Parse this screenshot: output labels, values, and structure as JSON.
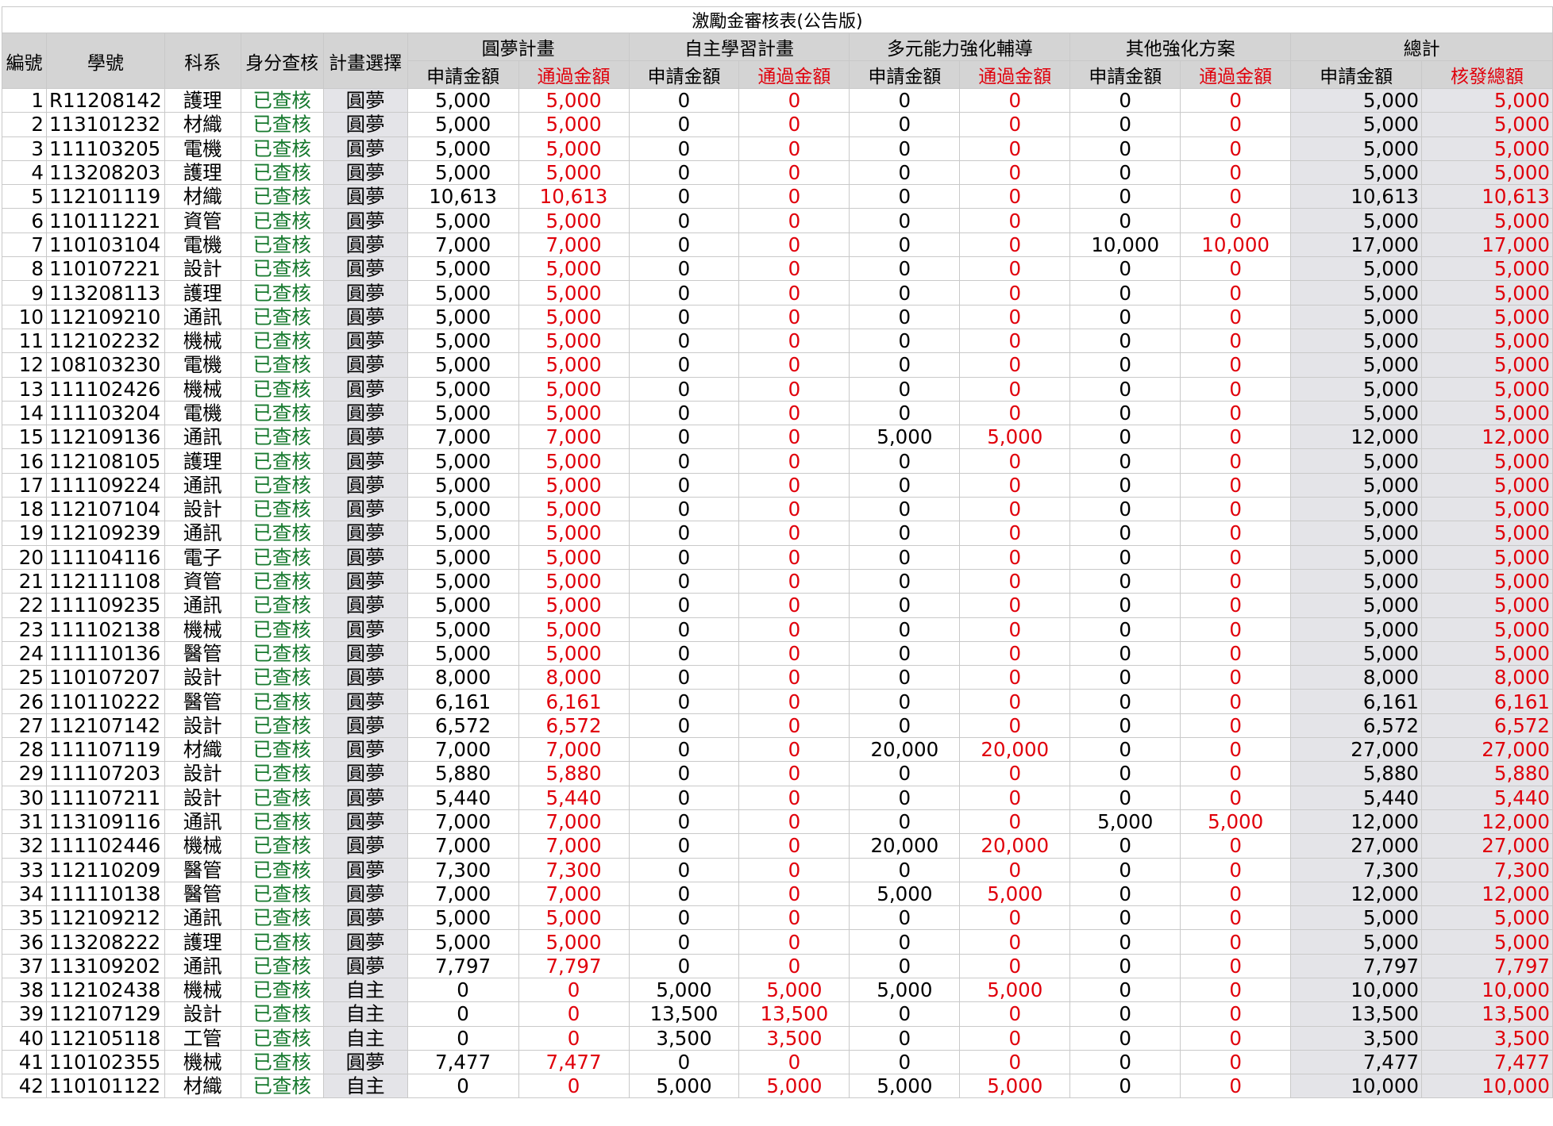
{
  "title": "激勵金審核表(公告版)",
  "headers": {
    "index": "編號",
    "student_id": "學號",
    "department": "科系",
    "identity_check": "身分查核",
    "plan_choice": "計畫選擇",
    "groups": [
      "圓夢計畫",
      "自主學習計畫",
      "多元能力強化輔導",
      "其他強化方案",
      "總計"
    ],
    "applied": "申請金額",
    "approved": "通過金額",
    "total_issued": "核發總額"
  },
  "colors": {
    "header_bg": "#d4d4d4",
    "approved_text": "#e0000b",
    "checked_text": "#17792e",
    "shaded_col": "#e4e4e8",
    "grid": "#c9c9c9"
  },
  "rows": [
    [
      "1",
      "R11208142",
      "護理",
      "已查核",
      "圓夢",
      "5,000",
      "5,000",
      "0",
      "0",
      "0",
      "0",
      "0",
      "0",
      "5,000",
      "5,000"
    ],
    [
      "2",
      "113101232",
      "材織",
      "已查核",
      "圓夢",
      "5,000",
      "5,000",
      "0",
      "0",
      "0",
      "0",
      "0",
      "0",
      "5,000",
      "5,000"
    ],
    [
      "3",
      "111103205",
      "電機",
      "已查核",
      "圓夢",
      "5,000",
      "5,000",
      "0",
      "0",
      "0",
      "0",
      "0",
      "0",
      "5,000",
      "5,000"
    ],
    [
      "4",
      "113208203",
      "護理",
      "已查核",
      "圓夢",
      "5,000",
      "5,000",
      "0",
      "0",
      "0",
      "0",
      "0",
      "0",
      "5,000",
      "5,000"
    ],
    [
      "5",
      "112101119",
      "材織",
      "已查核",
      "圓夢",
      "10,613",
      "10,613",
      "0",
      "0",
      "0",
      "0",
      "0",
      "0",
      "10,613",
      "10,613"
    ],
    [
      "6",
      "110111221",
      "資管",
      "已查核",
      "圓夢",
      "5,000",
      "5,000",
      "0",
      "0",
      "0",
      "0",
      "0",
      "0",
      "5,000",
      "5,000"
    ],
    [
      "7",
      "110103104",
      "電機",
      "已查核",
      "圓夢",
      "7,000",
      "7,000",
      "0",
      "0",
      "0",
      "0",
      "10,000",
      "10,000",
      "17,000",
      "17,000"
    ],
    [
      "8",
      "110107221",
      "設計",
      "已查核",
      "圓夢",
      "5,000",
      "5,000",
      "0",
      "0",
      "0",
      "0",
      "0",
      "0",
      "5,000",
      "5,000"
    ],
    [
      "9",
      "113208113",
      "護理",
      "已查核",
      "圓夢",
      "5,000",
      "5,000",
      "0",
      "0",
      "0",
      "0",
      "0",
      "0",
      "5,000",
      "5,000"
    ],
    [
      "10",
      "112109210",
      "通訊",
      "已查核",
      "圓夢",
      "5,000",
      "5,000",
      "0",
      "0",
      "0",
      "0",
      "0",
      "0",
      "5,000",
      "5,000"
    ],
    [
      "11",
      "112102232",
      "機械",
      "已查核",
      "圓夢",
      "5,000",
      "5,000",
      "0",
      "0",
      "0",
      "0",
      "0",
      "0",
      "5,000",
      "5,000"
    ],
    [
      "12",
      "108103230",
      "電機",
      "已查核",
      "圓夢",
      "5,000",
      "5,000",
      "0",
      "0",
      "0",
      "0",
      "0",
      "0",
      "5,000",
      "5,000"
    ],
    [
      "13",
      "111102426",
      "機械",
      "已查核",
      "圓夢",
      "5,000",
      "5,000",
      "0",
      "0",
      "0",
      "0",
      "0",
      "0",
      "5,000",
      "5,000"
    ],
    [
      "14",
      "111103204",
      "電機",
      "已查核",
      "圓夢",
      "5,000",
      "5,000",
      "0",
      "0",
      "0",
      "0",
      "0",
      "0",
      "5,000",
      "5,000"
    ],
    [
      "15",
      "112109136",
      "通訊",
      "已查核",
      "圓夢",
      "7,000",
      "7,000",
      "0",
      "0",
      "5,000",
      "5,000",
      "0",
      "0",
      "12,000",
      "12,000"
    ],
    [
      "16",
      "112108105",
      "護理",
      "已查核",
      "圓夢",
      "5,000",
      "5,000",
      "0",
      "0",
      "0",
      "0",
      "0",
      "0",
      "5,000",
      "5,000"
    ],
    [
      "17",
      "111109224",
      "通訊",
      "已查核",
      "圓夢",
      "5,000",
      "5,000",
      "0",
      "0",
      "0",
      "0",
      "0",
      "0",
      "5,000",
      "5,000"
    ],
    [
      "18",
      "112107104",
      "設計",
      "已查核",
      "圓夢",
      "5,000",
      "5,000",
      "0",
      "0",
      "0",
      "0",
      "0",
      "0",
      "5,000",
      "5,000"
    ],
    [
      "19",
      "112109239",
      "通訊",
      "已查核",
      "圓夢",
      "5,000",
      "5,000",
      "0",
      "0",
      "0",
      "0",
      "0",
      "0",
      "5,000",
      "5,000"
    ],
    [
      "20",
      "111104116",
      "電子",
      "已查核",
      "圓夢",
      "5,000",
      "5,000",
      "0",
      "0",
      "0",
      "0",
      "0",
      "0",
      "5,000",
      "5,000"
    ],
    [
      "21",
      "112111108",
      "資管",
      "已查核",
      "圓夢",
      "5,000",
      "5,000",
      "0",
      "0",
      "0",
      "0",
      "0",
      "0",
      "5,000",
      "5,000"
    ],
    [
      "22",
      "111109235",
      "通訊",
      "已查核",
      "圓夢",
      "5,000",
      "5,000",
      "0",
      "0",
      "0",
      "0",
      "0",
      "0",
      "5,000",
      "5,000"
    ],
    [
      "23",
      "111102138",
      "機械",
      "已查核",
      "圓夢",
      "5,000",
      "5,000",
      "0",
      "0",
      "0",
      "0",
      "0",
      "0",
      "5,000",
      "5,000"
    ],
    [
      "24",
      "111110136",
      "醫管",
      "已查核",
      "圓夢",
      "5,000",
      "5,000",
      "0",
      "0",
      "0",
      "0",
      "0",
      "0",
      "5,000",
      "5,000"
    ],
    [
      "25",
      "110107207",
      "設計",
      "已查核",
      "圓夢",
      "8,000",
      "8,000",
      "0",
      "0",
      "0",
      "0",
      "0",
      "0",
      "8,000",
      "8,000"
    ],
    [
      "26",
      "110110222",
      "醫管",
      "已查核",
      "圓夢",
      "6,161",
      "6,161",
      "0",
      "0",
      "0",
      "0",
      "0",
      "0",
      "6,161",
      "6,161"
    ],
    [
      "27",
      "112107142",
      "設計",
      "已查核",
      "圓夢",
      "6,572",
      "6,572",
      "0",
      "0",
      "0",
      "0",
      "0",
      "0",
      "6,572",
      "6,572"
    ],
    [
      "28",
      "111107119",
      "材織",
      "已查核",
      "圓夢",
      "7,000",
      "7,000",
      "0",
      "0",
      "20,000",
      "20,000",
      "0",
      "0",
      "27,000",
      "27,000"
    ],
    [
      "29",
      "111107203",
      "設計",
      "已查核",
      "圓夢",
      "5,880",
      "5,880",
      "0",
      "0",
      "0",
      "0",
      "0",
      "0",
      "5,880",
      "5,880"
    ],
    [
      "30",
      "111107211",
      "設計",
      "已查核",
      "圓夢",
      "5,440",
      "5,440",
      "0",
      "0",
      "0",
      "0",
      "0",
      "0",
      "5,440",
      "5,440"
    ],
    [
      "31",
      "113109116",
      "通訊",
      "已查核",
      "圓夢",
      "7,000",
      "7,000",
      "0",
      "0",
      "0",
      "0",
      "5,000",
      "5,000",
      "12,000",
      "12,000"
    ],
    [
      "32",
      "111102446",
      "機械",
      "已查核",
      "圓夢",
      "7,000",
      "7,000",
      "0",
      "0",
      "20,000",
      "20,000",
      "0",
      "0",
      "27,000",
      "27,000"
    ],
    [
      "33",
      "112110209",
      "醫管",
      "已查核",
      "圓夢",
      "7,300",
      "7,300",
      "0",
      "0",
      "0",
      "0",
      "0",
      "0",
      "7,300",
      "7,300"
    ],
    [
      "34",
      "111110138",
      "醫管",
      "已查核",
      "圓夢",
      "7,000",
      "7,000",
      "0",
      "0",
      "5,000",
      "5,000",
      "0",
      "0",
      "12,000",
      "12,000"
    ],
    [
      "35",
      "112109212",
      "通訊",
      "已查核",
      "圓夢",
      "5,000",
      "5,000",
      "0",
      "0",
      "0",
      "0",
      "0",
      "0",
      "5,000",
      "5,000"
    ],
    [
      "36",
      "113208222",
      "護理",
      "已查核",
      "圓夢",
      "5,000",
      "5,000",
      "0",
      "0",
      "0",
      "0",
      "0",
      "0",
      "5,000",
      "5,000"
    ],
    [
      "37",
      "113109202",
      "通訊",
      "已查核",
      "圓夢",
      "7,797",
      "7,797",
      "0",
      "0",
      "0",
      "0",
      "0",
      "0",
      "7,797",
      "7,797"
    ],
    [
      "38",
      "112102438",
      "機械",
      "已查核",
      "自主",
      "0",
      "0",
      "5,000",
      "5,000",
      "5,000",
      "5,000",
      "0",
      "0",
      "10,000",
      "10,000"
    ],
    [
      "39",
      "112107129",
      "設計",
      "已查核",
      "自主",
      "0",
      "0",
      "13,500",
      "13,500",
      "0",
      "0",
      "0",
      "0",
      "13,500",
      "13,500"
    ],
    [
      "40",
      "112105118",
      "工管",
      "已查核",
      "自主",
      "0",
      "0",
      "3,500",
      "3,500",
      "0",
      "0",
      "0",
      "0",
      "3,500",
      "3,500"
    ],
    [
      "41",
      "110102355",
      "機械",
      "已查核",
      "圓夢",
      "7,477",
      "7,477",
      "0",
      "0",
      "0",
      "0",
      "0",
      "0",
      "7,477",
      "7,477"
    ],
    [
      "42",
      "110101122",
      "材織",
      "已查核",
      "自主",
      "0",
      "0",
      "5,000",
      "5,000",
      "5,000",
      "5,000",
      "0",
      "0",
      "10,000",
      "10,000"
    ]
  ]
}
